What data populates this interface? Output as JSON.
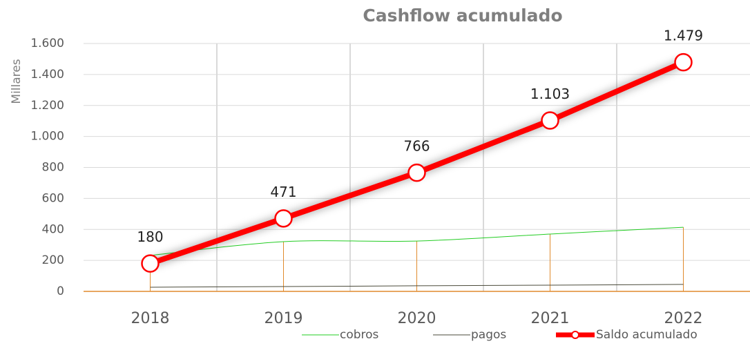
{
  "chart_data": {
    "type": "line",
    "title": "Cashflow acumulado",
    "y_label": "Millares",
    "categories": [
      "2018",
      "2019",
      "2020",
      "2021",
      "2022"
    ],
    "series": [
      {
        "name": "cobros",
        "color": "#22cc22",
        "values": [
          232,
          321,
          325,
          370,
          414
        ],
        "smooth": true,
        "drop_lines_color": "#e08a2c"
      },
      {
        "name": "pagos",
        "color": "#4a4a3a",
        "values": [
          27,
          31,
          36,
          40,
          45
        ]
      },
      {
        "name": "Saldo acumulado",
        "color": "#ff0000",
        "values": [
          180,
          471,
          766,
          1103,
          1479
        ],
        "value_labels": [
          "180",
          "471",
          "766",
          "1.103",
          "1.479"
        ],
        "markers": true
      }
    ],
    "ylim": [
      0,
      1600
    ],
    "yticks": [
      0,
      200,
      400,
      600,
      800,
      {
        "value": 1000,
        "label": "1.000"
      },
      {
        "value": 1200,
        "label": "1.200"
      },
      {
        "value": 1400,
        "label": "1.400"
      },
      {
        "value": 1600,
        "label": "1.600"
      }
    ],
    "grid": true,
    "legend": "bottom"
  }
}
